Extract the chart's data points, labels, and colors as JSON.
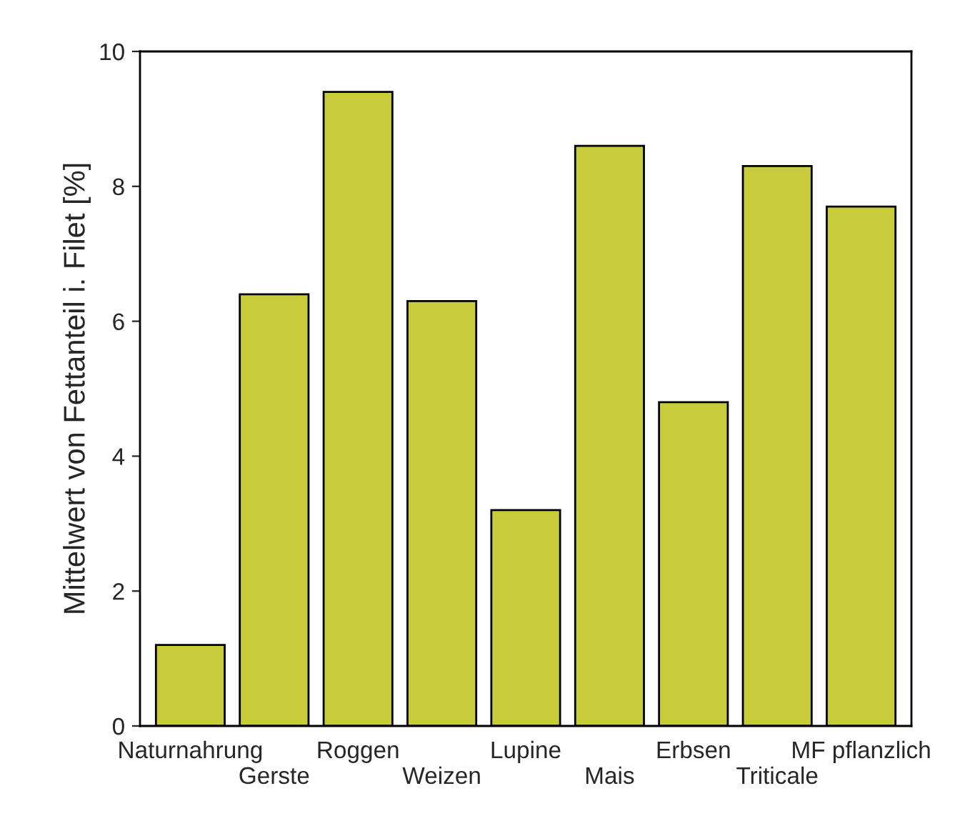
{
  "chart_data": {
    "type": "bar",
    "ylabel": "Mittelwert von Fettanteil i. Filet [%]",
    "categories": [
      "Naturnahrung",
      "Gerste",
      "Roggen",
      "Weizen",
      "Lupine",
      "Mais",
      "Erbsen",
      "Triticale",
      "MF pflanzlich"
    ],
    "values": [
      1.2,
      6.4,
      9.4,
      6.3,
      3.2,
      8.6,
      4.8,
      8.3,
      7.7
    ],
    "color": "#c8cc3a",
    "ylim": [
      0,
      10
    ],
    "yticks": [
      0,
      2,
      4,
      6,
      8,
      10
    ],
    "grid": false
  }
}
